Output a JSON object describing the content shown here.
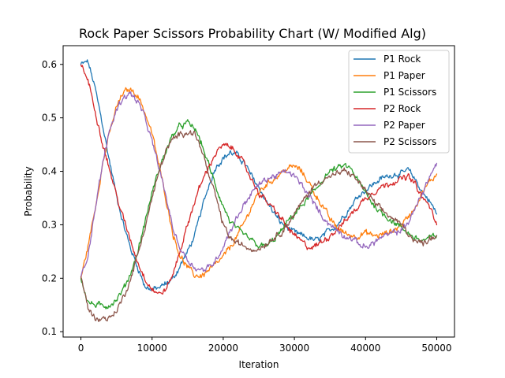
{
  "chart_data": {
    "type": "line",
    "title": "Rock Paper Scissors Probability Chart (W/ Modified Alg)",
    "xlabel": "Iteration",
    "ylabel": "Probability",
    "xlim": [
      -2500,
      52500
    ],
    "ylim": [
      0.09,
      0.635
    ],
    "xticks": [
      0,
      10000,
      20000,
      30000,
      40000,
      50000
    ],
    "xtick_labels": [
      "0",
      "10000",
      "20000",
      "30000",
      "40000",
      "50000"
    ],
    "yticks": [
      0.1,
      0.2,
      0.3,
      0.4,
      0.5,
      0.6
    ],
    "ytick_labels": [
      "0.1",
      "0.2",
      "0.3",
      "0.4",
      "0.5",
      "0.6"
    ],
    "grid": false,
    "legend_position": "top-right",
    "series": [
      {
        "name": "P1 Rock",
        "color": "#1f77b4",
        "x": [
          0,
          1000,
          2000,
          3000,
          4000,
          5000,
          6000,
          7000,
          8000,
          9000,
          10000,
          11000,
          12000,
          13000,
          14000,
          15000,
          16000,
          17000,
          18000,
          19000,
          20000,
          21000,
          22000,
          23000,
          24000,
          25000,
          26000,
          27000,
          28000,
          29000,
          30000,
          31000,
          32000,
          33000,
          34000,
          35000,
          36000,
          37000,
          38000,
          39000,
          40000,
          41000,
          42000,
          43000,
          44000,
          45000,
          46000,
          47000,
          48000,
          49000,
          50000
        ],
        "values": [
          0.6,
          0.605,
          0.555,
          0.49,
          0.42,
          0.355,
          0.3,
          0.255,
          0.22,
          0.185,
          0.178,
          0.182,
          0.19,
          0.2,
          0.225,
          0.25,
          0.28,
          0.33,
          0.375,
          0.41,
          0.425,
          0.435,
          0.43,
          0.415,
          0.39,
          0.37,
          0.345,
          0.325,
          0.305,
          0.295,
          0.285,
          0.28,
          0.275,
          0.27,
          0.278,
          0.29,
          0.3,
          0.318,
          0.335,
          0.355,
          0.365,
          0.375,
          0.385,
          0.39,
          0.395,
          0.395,
          0.402,
          0.385,
          0.36,
          0.345,
          0.32
        ]
      },
      {
        "name": "P1 Paper",
        "color": "#ff7f0e",
        "x": [
          0,
          1000,
          2000,
          3000,
          4000,
          5000,
          6000,
          7000,
          8000,
          9000,
          10000,
          11000,
          12000,
          13000,
          14000,
          15000,
          16000,
          17000,
          18000,
          19000,
          20000,
          21000,
          22000,
          23000,
          24000,
          25000,
          26000,
          27000,
          28000,
          29000,
          30000,
          31000,
          32000,
          33000,
          34000,
          35000,
          36000,
          37000,
          38000,
          39000,
          40000,
          41000,
          42000,
          43000,
          44000,
          45000,
          46000,
          47000,
          48000,
          49000,
          50000
        ],
        "values": [
          0.2,
          0.26,
          0.33,
          0.41,
          0.47,
          0.52,
          0.548,
          0.553,
          0.542,
          0.51,
          0.47,
          0.41,
          0.345,
          0.28,
          0.24,
          0.22,
          0.205,
          0.205,
          0.215,
          0.225,
          0.24,
          0.258,
          0.28,
          0.305,
          0.335,
          0.36,
          0.375,
          0.385,
          0.395,
          0.405,
          0.41,
          0.4,
          0.38,
          0.355,
          0.335,
          0.31,
          0.295,
          0.285,
          0.28,
          0.28,
          0.285,
          0.28,
          0.28,
          0.285,
          0.29,
          0.3,
          0.315,
          0.335,
          0.36,
          0.38,
          0.395
        ]
      },
      {
        "name": "P1 Scissors",
        "color": "#2ca02c",
        "x": [
          0,
          1000,
          2000,
          3000,
          4000,
          5000,
          6000,
          7000,
          8000,
          9000,
          10000,
          11000,
          12000,
          13000,
          14000,
          15000,
          16000,
          17000,
          18000,
          19000,
          20000,
          21000,
          22000,
          23000,
          24000,
          25000,
          26000,
          27000,
          28000,
          29000,
          30000,
          31000,
          32000,
          33000,
          34000,
          35000,
          36000,
          37000,
          38000,
          39000,
          40000,
          41000,
          42000,
          43000,
          44000,
          45000,
          46000,
          47000,
          48000,
          49000,
          50000
        ],
        "values": [
          0.2,
          0.155,
          0.15,
          0.148,
          0.15,
          0.16,
          0.18,
          0.21,
          0.25,
          0.305,
          0.36,
          0.405,
          0.44,
          0.47,
          0.485,
          0.49,
          0.48,
          0.45,
          0.41,
          0.37,
          0.335,
          0.305,
          0.29,
          0.28,
          0.27,
          0.26,
          0.26,
          0.27,
          0.285,
          0.305,
          0.32,
          0.335,
          0.35,
          0.365,
          0.385,
          0.4,
          0.405,
          0.41,
          0.405,
          0.38,
          0.36,
          0.34,
          0.325,
          0.315,
          0.305,
          0.295,
          0.285,
          0.275,
          0.27,
          0.275,
          0.28
        ]
      },
      {
        "name": "P2 Rock",
        "color": "#d62728",
        "x": [
          0,
          1000,
          2000,
          3000,
          4000,
          5000,
          6000,
          7000,
          8000,
          9000,
          10000,
          11000,
          12000,
          13000,
          14000,
          15000,
          16000,
          17000,
          18000,
          19000,
          20000,
          21000,
          22000,
          23000,
          24000,
          25000,
          26000,
          27000,
          28000,
          29000,
          30000,
          31000,
          32000,
          33000,
          34000,
          35000,
          36000,
          37000,
          38000,
          39000,
          40000,
          41000,
          42000,
          43000,
          44000,
          45000,
          46000,
          47000,
          48000,
          49000,
          50000
        ],
        "values": [
          0.6,
          0.57,
          0.515,
          0.455,
          0.405,
          0.355,
          0.31,
          0.27,
          0.23,
          0.2,
          0.18,
          0.17,
          0.18,
          0.21,
          0.255,
          0.3,
          0.345,
          0.38,
          0.41,
          0.435,
          0.448,
          0.445,
          0.435,
          0.41,
          0.385,
          0.36,
          0.345,
          0.33,
          0.315,
          0.295,
          0.28,
          0.268,
          0.258,
          0.26,
          0.27,
          0.28,
          0.292,
          0.305,
          0.32,
          0.335,
          0.35,
          0.36,
          0.37,
          0.375,
          0.382,
          0.385,
          0.39,
          0.375,
          0.35,
          0.335,
          0.3
        ]
      },
      {
        "name": "P2 Paper",
        "color": "#9467bd",
        "x": [
          0,
          1000,
          2000,
          3000,
          4000,
          5000,
          6000,
          7000,
          8000,
          9000,
          10000,
          11000,
          12000,
          13000,
          14000,
          15000,
          16000,
          17000,
          18000,
          19000,
          20000,
          21000,
          22000,
          23000,
          24000,
          25000,
          26000,
          27000,
          28000,
          29000,
          30000,
          31000,
          32000,
          33000,
          34000,
          35000,
          36000,
          37000,
          38000,
          39000,
          40000,
          41000,
          42000,
          43000,
          44000,
          45000,
          46000,
          47000,
          48000,
          49000,
          50000
        ],
        "values": [
          0.2,
          0.245,
          0.33,
          0.41,
          0.475,
          0.515,
          0.54,
          0.545,
          0.53,
          0.5,
          0.455,
          0.405,
          0.35,
          0.29,
          0.255,
          0.235,
          0.22,
          0.215,
          0.22,
          0.235,
          0.26,
          0.29,
          0.315,
          0.34,
          0.36,
          0.375,
          0.385,
          0.39,
          0.395,
          0.4,
          0.39,
          0.375,
          0.355,
          0.335,
          0.315,
          0.3,
          0.29,
          0.28,
          0.275,
          0.265,
          0.258,
          0.265,
          0.275,
          0.28,
          0.285,
          0.29,
          0.305,
          0.33,
          0.36,
          0.39,
          0.415
        ]
      },
      {
        "name": "P2 Scissors",
        "color": "#8c564b",
        "x": [
          0,
          1000,
          2000,
          3000,
          4000,
          5000,
          6000,
          7000,
          8000,
          9000,
          10000,
          11000,
          12000,
          13000,
          14000,
          15000,
          16000,
          17000,
          18000,
          19000,
          20000,
          21000,
          22000,
          23000,
          24000,
          25000,
          26000,
          27000,
          28000,
          29000,
          30000,
          31000,
          32000,
          33000,
          34000,
          35000,
          36000,
          37000,
          38000,
          39000,
          40000,
          41000,
          42000,
          43000,
          44000,
          45000,
          46000,
          47000,
          48000,
          49000,
          50000
        ],
        "values": [
          0.2,
          0.145,
          0.125,
          0.125,
          0.125,
          0.14,
          0.165,
          0.2,
          0.245,
          0.295,
          0.35,
          0.4,
          0.44,
          0.46,
          0.47,
          0.475,
          0.47,
          0.44,
          0.39,
          0.35,
          0.3,
          0.275,
          0.265,
          0.26,
          0.255,
          0.255,
          0.265,
          0.275,
          0.285,
          0.3,
          0.32,
          0.34,
          0.36,
          0.375,
          0.385,
          0.39,
          0.395,
          0.4,
          0.395,
          0.38,
          0.365,
          0.345,
          0.33,
          0.32,
          0.31,
          0.3,
          0.285,
          0.27,
          0.265,
          0.275,
          0.28
        ]
      }
    ]
  }
}
